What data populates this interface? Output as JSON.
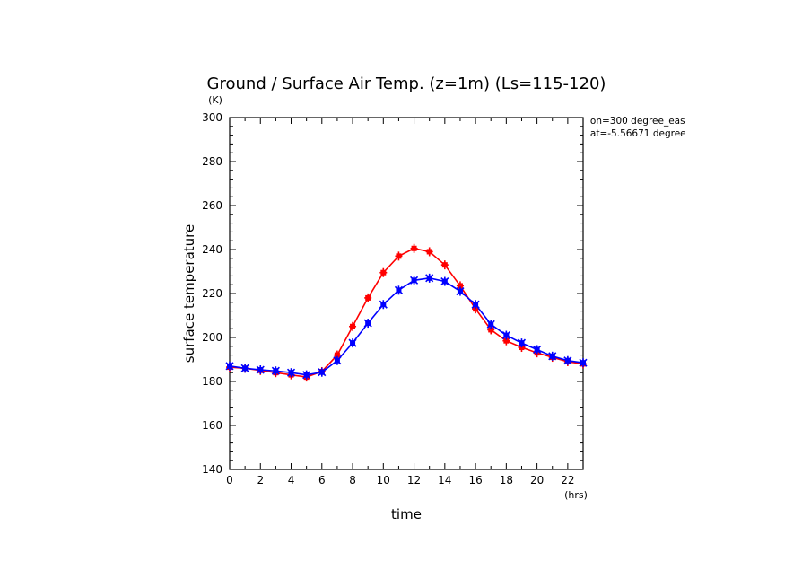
{
  "chart_data": {
    "type": "line",
    "title": "Ground / Surface Air Temp. (z=1m) (Ls=115-120)",
    "xlabel": "time",
    "ylabel": "surface temperature",
    "x_unit": "(hrs)",
    "y_unit": "(K)",
    "xlim": [
      0,
      23
    ],
    "ylim": [
      140,
      300
    ],
    "x_ticks": [
      0,
      2,
      4,
      6,
      8,
      10,
      12,
      14,
      16,
      18,
      20,
      22
    ],
    "y_ticks": [
      140,
      160,
      180,
      200,
      220,
      240,
      260,
      280,
      300
    ],
    "annotations": [
      "lon=300 degree_eas",
      "lat=-5.56671 degree"
    ],
    "x": [
      0,
      1,
      2,
      3,
      4,
      5,
      6,
      7,
      8,
      9,
      10,
      11,
      12,
      13,
      14,
      15,
      16,
      17,
      18,
      19,
      20,
      21,
      22,
      23
    ],
    "series": [
      {
        "color": "#ff0000",
        "values": [
          186.5,
          186,
          185,
          184,
          183,
          182,
          184.5,
          192,
          205,
          218,
          229.5,
          237,
          240.5,
          239,
          233,
          223.5,
          213,
          203.5,
          198.5,
          195.5,
          193,
          191,
          189,
          188
        ]
      },
      {
        "color": "#0000ff",
        "values": [
          187,
          186,
          185.3,
          184.8,
          184,
          183,
          184.2,
          189.5,
          197.5,
          206.5,
          215,
          221.5,
          226,
          227,
          225.5,
          221,
          215,
          206,
          201,
          197.5,
          194.5,
          191.5,
          189.5,
          188.5
        ]
      }
    ]
  }
}
